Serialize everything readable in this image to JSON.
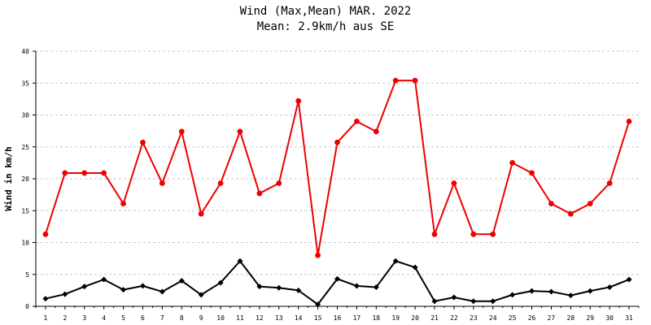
{
  "chart_data": {
    "type": "line",
    "title": "Wind (Max,Mean) MAR. 2022",
    "subtitle": "Mean: 2.9km/h aus SE",
    "xlabel": "",
    "ylabel": "Wind in km/h",
    "ylim": [
      0,
      40
    ],
    "yticks": [
      "0",
      "5",
      "10",
      "15",
      "20",
      "25",
      "30",
      "35",
      "40"
    ],
    "grid": true,
    "categories": [
      "1",
      "2",
      "3",
      "4",
      "5",
      "6",
      "7",
      "8",
      "9",
      "10",
      "11",
      "12",
      "13",
      "14",
      "15",
      "16",
      "17",
      "18",
      "19",
      "20",
      "21",
      "22",
      "23",
      "24",
      "25",
      "26",
      "27",
      "28",
      "29",
      "30",
      "31"
    ],
    "series": [
      {
        "color": "#ee0000",
        "marker": "circle",
        "values": [
          11.3,
          20.9,
          20.9,
          20.9,
          16.1,
          25.7,
          19.3,
          27.4,
          14.5,
          19.3,
          27.4,
          17.7,
          19.3,
          32.2,
          8.0,
          25.7,
          29.0,
          27.4,
          35.4,
          35.4,
          11.3,
          19.3,
          11.3,
          11.3,
          22.5,
          20.9,
          16.1,
          14.5,
          16.1,
          19.3,
          29.0
        ]
      },
      {
        "color": "#000000",
        "marker": "diamond",
        "values": [
          1.2,
          1.9,
          3.1,
          4.2,
          2.6,
          3.2,
          2.3,
          4.0,
          1.8,
          3.7,
          7.1,
          3.1,
          2.9,
          2.5,
          0.3,
          4.3,
          3.2,
          3.0,
          7.1,
          6.1,
          0.8,
          1.4,
          0.8,
          0.8,
          1.8,
          2.4,
          2.3,
          1.7,
          2.4,
          3.0,
          4.2
        ]
      }
    ]
  }
}
